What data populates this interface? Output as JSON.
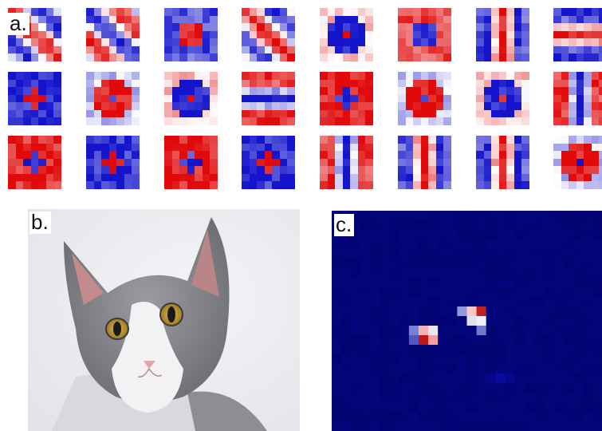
{
  "labels": {
    "a": "a.",
    "b": "b.",
    "c": "c."
  },
  "panels": {
    "a": {
      "grid_rows": 3,
      "grid_cols": 8,
      "kernel_size": 7,
      "colormap": "bwr"
    },
    "b": {
      "subject": "cat"
    },
    "c": {
      "colormap": "seismic-dark"
    }
  },
  "colors": {
    "positive": "#e60000",
    "negative": "#1414c8",
    "background": "#0a0f5a"
  }
}
